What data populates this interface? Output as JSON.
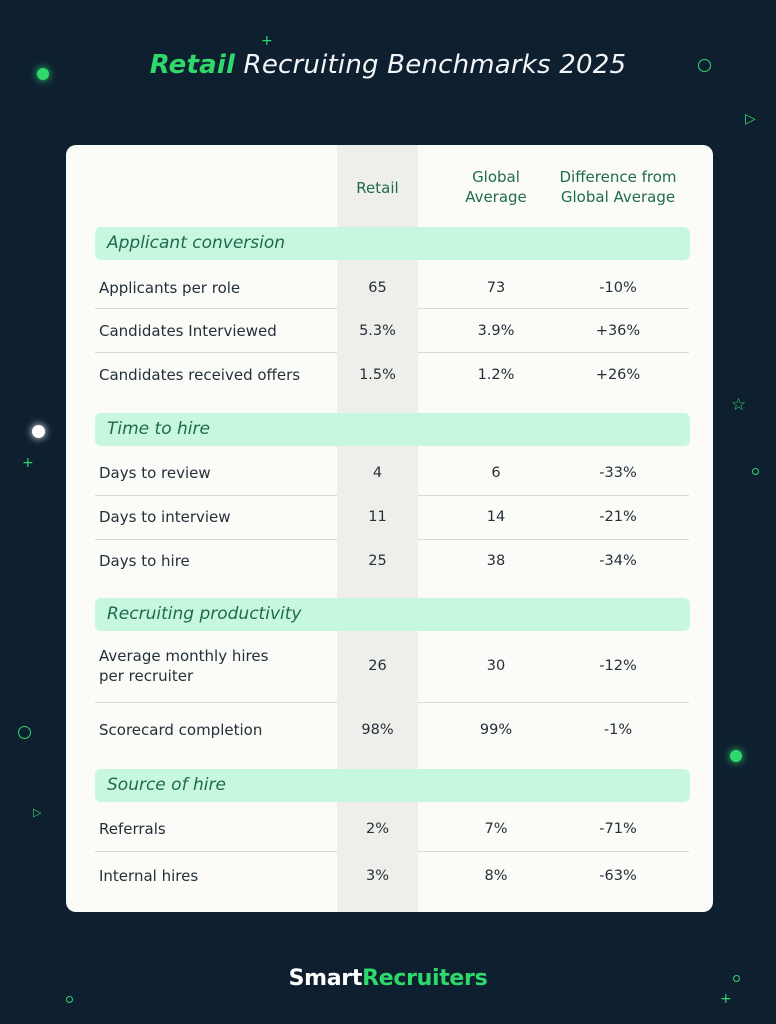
{
  "title": {
    "accent": "Retail",
    "rest": " Recruiting Benchmarks 2025"
  },
  "columns": {
    "retail": "Retail",
    "global_line1": "Global",
    "global_line2": "Average",
    "diff_line1": "Difference from",
    "diff_line2": "Global Average"
  },
  "sections": [
    {
      "name": "Applicant conversion",
      "rows": [
        {
          "label": "Applicants per role",
          "retail": "65",
          "global": "73",
          "diff": "-10%"
        },
        {
          "label": "Candidates Interviewed",
          "retail": "5.3%",
          "global": "3.9%",
          "diff": "+36%"
        },
        {
          "label": "Candidates received offers",
          "retail": "1.5%",
          "global": "1.2%",
          "diff": "+26%"
        }
      ]
    },
    {
      "name": "Time to hire",
      "rows": [
        {
          "label": "Days to review",
          "retail": "4",
          "global": "6",
          "diff": "-33%"
        },
        {
          "label": "Days to interview",
          "retail": "11",
          "global": "14",
          "diff": "-21%"
        },
        {
          "label": "Days to hire",
          "retail": "25",
          "global": "38",
          "diff": "-34%"
        }
      ]
    },
    {
      "name": "Recruiting productivity",
      "rows": [
        {
          "label_line1": "Average monthly hires",
          "label_line2": "per recruiter",
          "retail": "26",
          "global": "30",
          "diff": "-12%"
        },
        {
          "label": "Scorecard completion",
          "retail": "98%",
          "global": "99%",
          "diff": "-1%"
        }
      ]
    },
    {
      "name": "Source of hire",
      "rows": [
        {
          "label": "Referrals",
          "retail": "2%",
          "global": "7%",
          "diff": "-71%"
        },
        {
          "label": "Internal hires",
          "retail": "3%",
          "global": "8%",
          "diff": "-63%"
        }
      ]
    }
  ],
  "logo": {
    "part1": "Smart",
    "part2": "Recruiters"
  },
  "colors": {
    "background": "#0e2030",
    "accent": "#2fd86a",
    "section_fill": "#c8f7df",
    "section_text": "#1e6a4c"
  }
}
